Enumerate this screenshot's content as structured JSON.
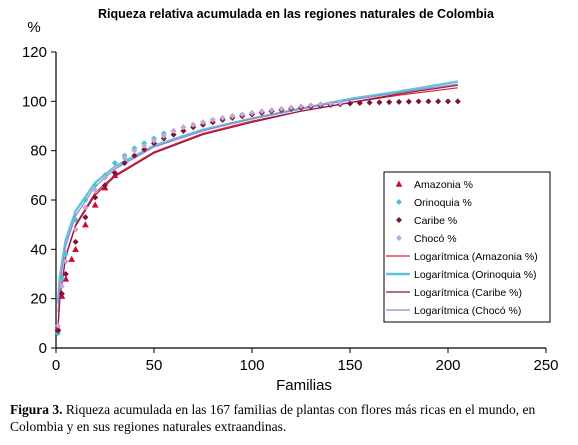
{
  "chart_data": {
    "type": "scatter",
    "title": "Riqueza relativa acumulada en las regiones naturales de Colombia",
    "xlabel": "Familias",
    "ylabel": "%",
    "xlim": [
      0,
      250
    ],
    "ylim": [
      0,
      120
    ],
    "xticks": [
      0,
      50,
      100,
      150,
      200,
      250
    ],
    "yticks": [
      0,
      20,
      40,
      60,
      80,
      100,
      120
    ],
    "grid": false,
    "legend_position": "right",
    "series": [
      {
        "name": "Amazonia %",
        "kind": "scatter",
        "marker": "triangle",
        "color": "#cc0a2a",
        "x": [
          1,
          3,
          5,
          8,
          10,
          15,
          20,
          25,
          30
        ],
        "y": [
          8,
          21,
          28,
          36,
          40,
          50,
          58,
          65,
          70
        ]
      },
      {
        "name": "Orinoquia %",
        "kind": "scatter",
        "marker": "diamond",
        "color": "#49c3d5",
        "x": [
          1,
          3,
          5,
          10,
          15,
          20,
          25,
          30,
          35,
          40,
          45,
          50,
          55,
          60,
          65,
          70,
          75,
          80,
          85,
          90,
          95,
          100,
          105,
          110,
          115,
          120,
          125,
          130,
          135,
          140,
          145
        ],
        "y": [
          6,
          28,
          38,
          52,
          60,
          66,
          70,
          75,
          78,
          81,
          83,
          85,
          87,
          88,
          89.5,
          90.5,
          91.5,
          92.5,
          93,
          94,
          94.5,
          95,
          95.5,
          96,
          96.5,
          97,
          97.5,
          98,
          98.5,
          98.8,
          99.2
        ]
      },
      {
        "name": "Caribe %",
        "kind": "scatter",
        "marker": "diamond",
        "color": "#7b1238",
        "x": [
          1,
          3,
          5,
          10,
          15,
          20,
          25,
          30,
          35,
          40,
          45,
          50,
          55,
          60,
          65,
          70,
          75,
          80,
          85,
          90,
          95,
          100,
          105,
          110,
          115,
          120,
          125,
          130,
          135,
          140,
          145,
          150,
          155,
          160,
          165,
          170,
          175,
          180,
          185,
          190,
          195,
          200,
          205
        ],
        "y": [
          7,
          22,
          30,
          43,
          53,
          61,
          66,
          71,
          75,
          78,
          80.5,
          83,
          85,
          86.5,
          88,
          89.5,
          90.5,
          91.5,
          92.5,
          93.3,
          94,
          94.7,
          95.3,
          96,
          96.5,
          97,
          97.4,
          97.8,
          98.2,
          98.5,
          98.8,
          99.1,
          99.3,
          99.5,
          99.6,
          99.7,
          99.8,
          99.9,
          100,
          100,
          100,
          100,
          100
        ]
      },
      {
        "name": "Chocó %",
        "kind": "scatter",
        "marker": "diamond",
        "color": "#c6a6d8",
        "x": [
          1,
          3,
          5,
          10,
          15,
          20,
          25,
          30,
          35,
          40,
          45,
          50,
          55,
          60,
          65,
          70,
          75,
          80,
          85,
          90,
          95,
          100,
          105,
          110,
          115,
          120,
          125,
          130,
          135,
          140,
          145
        ],
        "y": [
          9,
          25,
          35,
          48,
          57,
          64,
          69,
          73,
          77,
          80,
          82,
          84,
          86,
          88,
          89.5,
          90.5,
          91.5,
          92.5,
          93.3,
          94,
          94.7,
          95.3,
          96,
          96.5,
          97,
          97.5,
          98,
          98.4,
          98.8,
          99.1,
          99.4
        ]
      },
      {
        "name": "Logarítmica (Amazonia %)",
        "kind": "line",
        "color": "#e02020",
        "stroke": 1.2,
        "x": [
          1,
          2,
          5,
          10,
          20,
          30,
          50,
          75,
          100,
          125,
          150,
          175,
          205
        ],
        "y": [
          8,
          20,
          37.5,
          50,
          63,
          70,
          79.5,
          87,
          92,
          96,
          99.5,
          102.5,
          105.5
        ]
      },
      {
        "name": "Logarítmica (Orinoquia %)",
        "kind": "line",
        "color": "#5ec4dc",
        "stroke": 2.4,
        "x": [
          1,
          2,
          5,
          10,
          20,
          30,
          50,
          75,
          100,
          125,
          150,
          175,
          205
        ],
        "y": [
          18,
          29,
          44,
          55.5,
          67,
          73.5,
          82,
          88.5,
          93,
          97,
          101,
          104,
          108
        ]
      },
      {
        "name": "Logarítmica (Caribe %)",
        "kind": "line",
        "color": "#8b1848",
        "stroke": 1.2,
        "x": [
          1,
          2,
          5,
          10,
          20,
          30,
          50,
          75,
          100,
          125,
          150,
          175,
          205
        ],
        "y": [
          8.5,
          20.5,
          37,
          49.5,
          62,
          69.5,
          79,
          86.5,
          91.5,
          96,
          99.5,
          103,
          106.5
        ]
      },
      {
        "name": "Logarítmica (Chocó %)",
        "kind": "line",
        "color": "#a77cc9",
        "stroke": 1.2,
        "x": [
          1,
          2,
          5,
          10,
          20,
          30,
          50,
          75,
          100,
          125,
          150,
          175,
          205
        ],
        "y": [
          14.5,
          26,
          41.5,
          53.5,
          65.5,
          72.5,
          81.5,
          88,
          93,
          97,
          100.5,
          103.5,
          107
        ]
      }
    ]
  },
  "caption": {
    "label": "Figura 3.",
    "text": " Riqueza acumulada en las 167 familias de plantas con flores más ricas en el mundo, en Colombia y en sus regiones naturales extraandinas."
  }
}
